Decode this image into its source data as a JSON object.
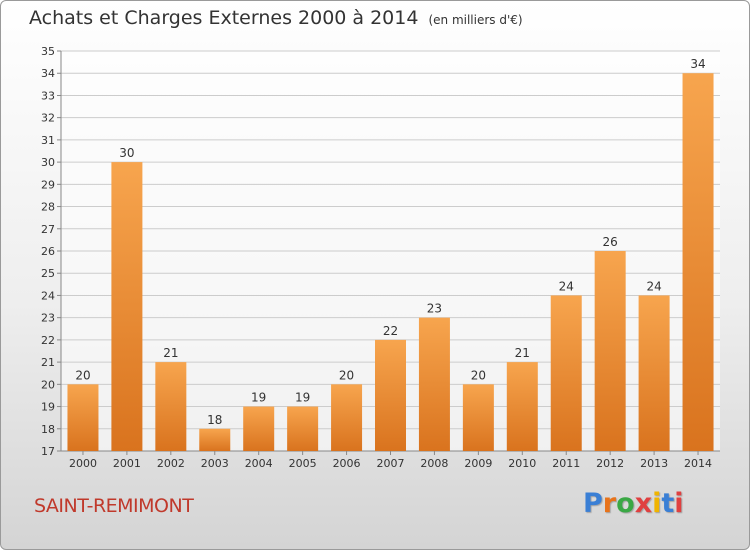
{
  "header": {
    "title": "Achats et Charges Externes 2000 à 2014",
    "subtitle": "(en milliers d'€)"
  },
  "commune": "SAINT-REMIMONT",
  "logo": {
    "text": "Proxiti",
    "letter_colors": [
      "#3a7fd5",
      "#e8731a",
      "#3aa845",
      "#e04040",
      "#f0b400",
      "#3a7fd5",
      "#e04040"
    ]
  },
  "colors": {
    "bar_top": "#f7a54e",
    "bar_bottom": "#d9731e",
    "grid": "#cccccc",
    "commune_text": "#c0392b"
  },
  "chart_data": {
    "type": "bar",
    "categories": [
      "2000",
      "2001",
      "2002",
      "2003",
      "2004",
      "2005",
      "2006",
      "2007",
      "2008",
      "2009",
      "2010",
      "2011",
      "2012",
      "2013",
      "2014"
    ],
    "values": [
      20,
      30,
      21,
      18,
      19,
      19,
      20,
      22,
      23,
      20,
      21,
      24,
      26,
      24,
      34
    ],
    "title": "Achats et Charges Externes 2000 à 2014",
    "subtitle": "(en milliers d'€)",
    "xlabel": "",
    "ylabel": "",
    "ylim": [
      17,
      35
    ],
    "yticks": [
      17,
      18,
      19,
      20,
      21,
      22,
      23,
      24,
      25,
      26,
      27,
      28,
      29,
      30,
      31,
      32,
      33,
      34,
      35
    ],
    "grid": true,
    "data_labels": true
  }
}
